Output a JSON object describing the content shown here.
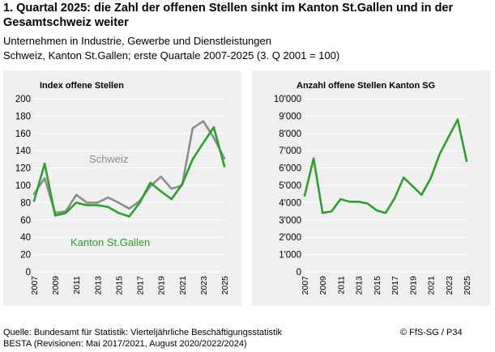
{
  "header": {
    "title": "1. Quartal 2025: die Zahl der offenen Stellen sinkt im Kanton St.Gallen und in der Gesamtschweiz weiter",
    "subtitle_1": "Unternehmen in Industrie, Gewerbe und Dienstleistungen",
    "subtitle_2": "Schweiz, Kanton St.Gallen; erste Quartale 2007-2025 (3. Q 2001 = 100)"
  },
  "footer": {
    "source_1": "Quelle: Bundesamt für Statistik: Vierteljährliche Beschäftigungsstatistik",
    "source_2": "BESTA (Revisionen: Mai 2017/2021, August 2020/2022/2024)",
    "credit": "© FfS-SG / P34"
  },
  "colors": {
    "schweiz": "#8c8c8c",
    "stgallen": "#2ca02c",
    "panel_bg": "#efefef",
    "grid": "#ffffff"
  },
  "chart_data": [
    {
      "type": "line",
      "title": "Index offene Stellen",
      "x": [
        2007,
        2008,
        2009,
        2010,
        2011,
        2012,
        2013,
        2014,
        2015,
        2016,
        2017,
        2018,
        2019,
        2020,
        2021,
        2022,
        2023,
        2024,
        2025
      ],
      "xticks": [
        "2007",
        "2009",
        "2011",
        "2013",
        "2015",
        "2017",
        "2019",
        "2021",
        "2023",
        "2025"
      ],
      "ylim": [
        0,
        200
      ],
      "yticks": [
        "0",
        "20",
        "40",
        "60",
        "80",
        "100",
        "120",
        "140",
        "160",
        "180",
        "200"
      ],
      "grid": true,
      "series": [
        {
          "name": "Schweiz",
          "color": "#8c8c8c",
          "values": [
            90,
            108,
            68,
            70,
            89,
            80,
            80,
            86,
            80,
            73,
            82,
            99,
            110,
            96,
            100,
            166,
            174,
            155,
            131
          ]
        },
        {
          "name": "Kanton St.Gallen",
          "color": "#2ca02c",
          "values": [
            82,
            125,
            65,
            68,
            80,
            77,
            77,
            75,
            68,
            64,
            80,
            103,
            93,
            84,
            101,
            130,
            149,
            167,
            122
          ]
        }
      ]
    },
    {
      "type": "line",
      "title": "Anzahl offene Stellen Kanton SG",
      "x": [
        2007,
        2008,
        2009,
        2010,
        2011,
        2012,
        2013,
        2014,
        2015,
        2016,
        2017,
        2018,
        2019,
        2020,
        2021,
        2022,
        2023,
        2024,
        2025
      ],
      "xticks": [
        "2007",
        "2009",
        "2011",
        "2013",
        "2015",
        "2017",
        "2019",
        "2021",
        "2023",
        "2025"
      ],
      "ylim": [
        0,
        10000
      ],
      "yticks": [
        "0",
        "1'000",
        "2'000",
        "3'000",
        "4'000",
        "5'000",
        "6'000",
        "7'000",
        "8'000",
        "9'000",
        "10'000"
      ],
      "grid": true,
      "series": [
        {
          "name": "",
          "color": "#2ca02c",
          "values": [
            4400,
            6550,
            3400,
            3500,
            4200,
            4050,
            4050,
            3950,
            3550,
            3400,
            4250,
            5450,
            4950,
            4450,
            5400,
            6800,
            7800,
            8800,
            6400
          ]
        }
      ]
    }
  ]
}
